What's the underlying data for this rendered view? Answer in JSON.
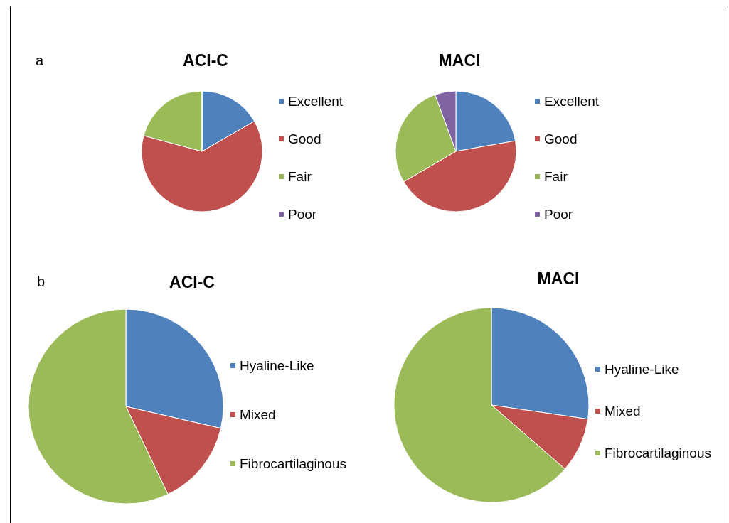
{
  "chart_data": [
    {
      "type": "pie",
      "title": "ACI-C",
      "annotations": [
        "a"
      ],
      "legend": "right",
      "categories": [
        "Excellent",
        "Good",
        "Fair",
        "Poor"
      ],
      "values": [
        16.7,
        62.5,
        20.8,
        0
      ],
      "colors": [
        "#4f81bd",
        "#c0504d",
        "#9bbb59",
        "#8064a2"
      ]
    },
    {
      "type": "pie",
      "title": "MACI",
      "legend": "right",
      "categories": [
        "Excellent",
        "Good",
        "Fair",
        "Poor"
      ],
      "values": [
        22.2,
        44.4,
        27.8,
        5.6
      ],
      "colors": [
        "#4f81bd",
        "#c0504d",
        "#9bbb59",
        "#8064a2"
      ]
    },
    {
      "type": "pie",
      "title": "ACI-C",
      "annotations": [
        "b"
      ],
      "legend": "right",
      "categories": [
        "Hyaline-Like",
        "Mixed",
        "Fibrocartilaginous"
      ],
      "values": [
        28.6,
        14.3,
        57.1
      ],
      "colors": [
        "#4f81bd",
        "#c0504d",
        "#9bbb59"
      ]
    },
    {
      "type": "pie",
      "title": "MACI",
      "legend": "right",
      "categories": [
        "Hyaline-Like",
        "Mixed",
        "Fibrocartilaginous"
      ],
      "values": [
        27.3,
        9.1,
        63.6
      ],
      "colors": [
        "#4f81bd",
        "#c0504d",
        "#9bbb59"
      ]
    }
  ]
}
